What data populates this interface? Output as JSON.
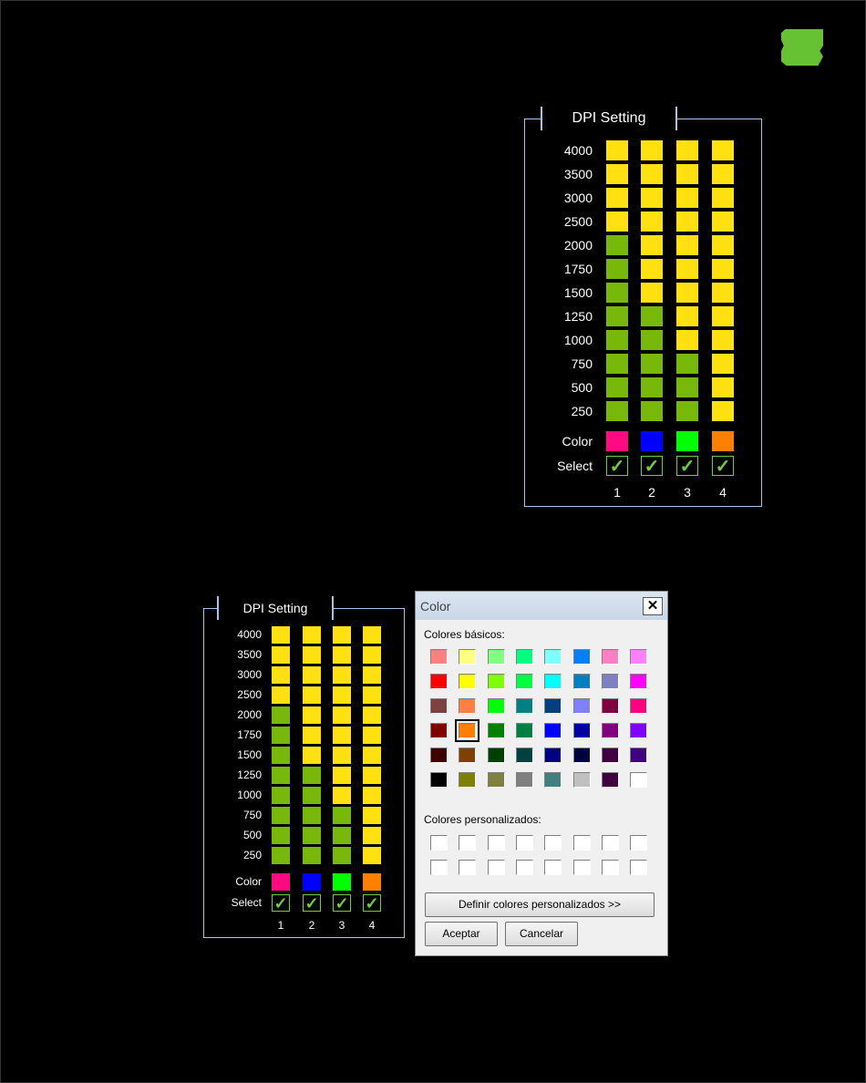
{
  "panel_title": "DPI Setting",
  "dpi_levels": [
    "4000",
    "3500",
    "3000",
    "2500",
    "2000",
    "1750",
    "1500",
    "1250",
    "1000",
    "750",
    "500",
    "250"
  ],
  "color_label": "Color",
  "select_label": "Select",
  "profiles": [
    {
      "number": "1",
      "green_levels": 8,
      "color": "#ff0a80",
      "selected": true
    },
    {
      "number": "2",
      "green_levels": 5,
      "color": "#0000ff",
      "selected": true
    },
    {
      "number": "3",
      "green_levels": 3,
      "color": "#00ff00",
      "selected": true
    },
    {
      "number": "4",
      "green_levels": 0,
      "color": "#ff8000",
      "selected": true
    }
  ],
  "colors": {
    "active": "#78b80a",
    "inactive": "#ffe010",
    "check": "#6fcf3a",
    "logo": "#66c232"
  },
  "dialog": {
    "title": "Color",
    "close": "✕",
    "basic_label": "Colores básicos:",
    "basic_colors": [
      "#ff8080",
      "#ffff80",
      "#80ff80",
      "#00ff80",
      "#80ffff",
      "#0080ff",
      "#ff80c0",
      "#ff80ff",
      "#ff0000",
      "#ffff00",
      "#80ff00",
      "#00ff40",
      "#00ffff",
      "#0080c0",
      "#8080c0",
      "#ff00ff",
      "#804040",
      "#ff8040",
      "#00ff00",
      "#008080",
      "#004080",
      "#8080ff",
      "#800040",
      "#ff0080",
      "#800000",
      "#ff8000",
      "#008000",
      "#008040",
      "#0000ff",
      "#0000a0",
      "#800080",
      "#8000ff",
      "#400000",
      "#804000",
      "#004000",
      "#004040",
      "#000080",
      "#000040",
      "#400040",
      "#400080",
      "#000000",
      "#808000",
      "#808040",
      "#808080",
      "#408080",
      "#c0c0c0",
      "#400040",
      "#ffffff"
    ],
    "selected_index": 25,
    "custom_label": "Colores personalizados:",
    "define_button": "Definir colores personalizados >>",
    "ok_button": "Aceptar",
    "cancel_button": "Cancelar"
  }
}
